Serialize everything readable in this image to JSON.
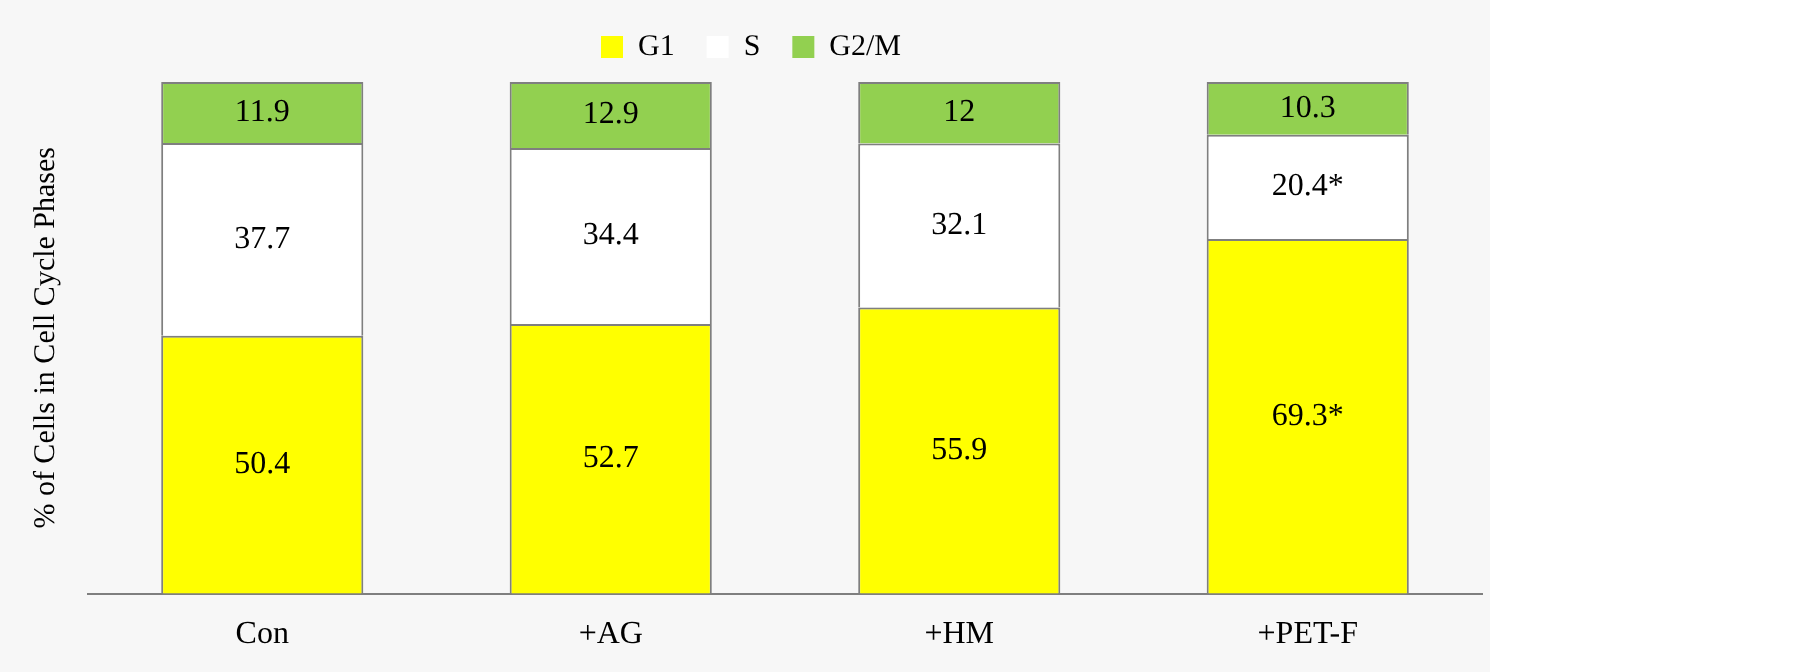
{
  "chart_data": {
    "type": "bar",
    "stacked": true,
    "ylabel": "% of Cells in Cell Cycle Phases",
    "categories": [
      "Con",
      "+AG",
      "+HM",
      "+PET-F"
    ],
    "series": [
      {
        "name": "G1",
        "color": "#ffff00",
        "values": [
          50.4,
          52.7,
          55.9,
          69.3
        ],
        "value_labels": [
          "50.4",
          "52.7",
          "55.9",
          "69.3*"
        ]
      },
      {
        "name": "S",
        "color": "#ffffff",
        "values": [
          37.7,
          34.4,
          32.1,
          20.4
        ],
        "value_labels": [
          "37.7",
          "34.4",
          "32.1",
          "20.4*"
        ]
      },
      {
        "name": "G2/M",
        "color": "#92d050",
        "values": [
          11.9,
          12.9,
          12,
          10.3
        ],
        "value_labels": [
          "11.9",
          "12.9",
          "12",
          "10.3"
        ]
      }
    ],
    "legend": "top",
    "grid": false,
    "tick_labels": "x"
  }
}
